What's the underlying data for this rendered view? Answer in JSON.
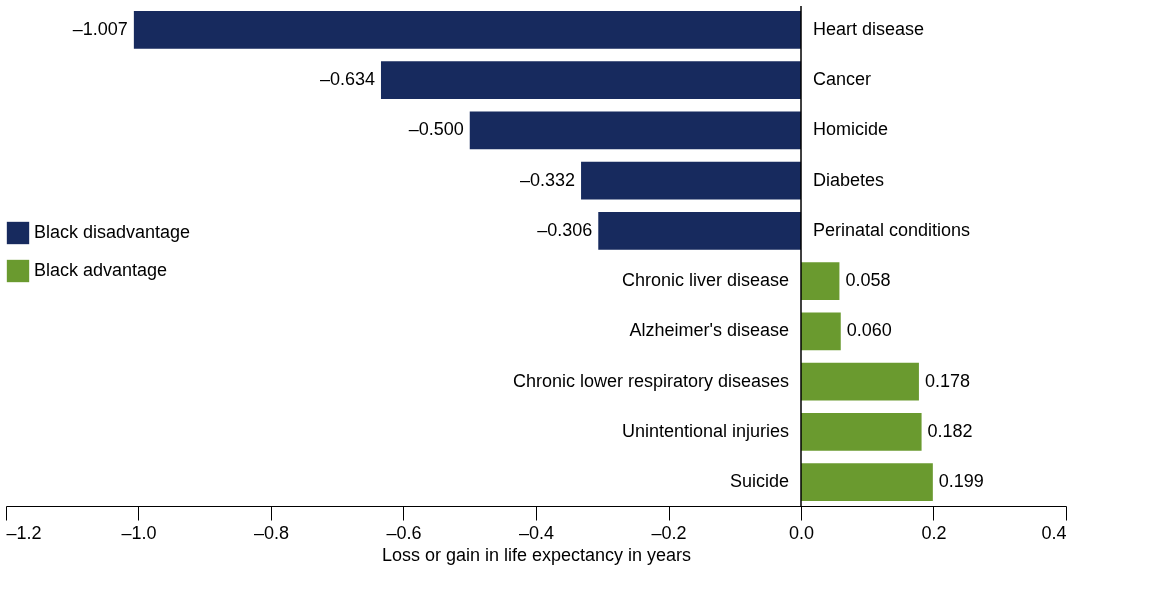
{
  "chart_data": {
    "type": "bar",
    "orientation": "horizontal",
    "categories": [
      "Heart disease",
      "Cancer",
      "Homicide",
      "Diabetes",
      "Perinatal conditions",
      "Chronic liver disease",
      "Alzheimer's disease",
      "Chronic lower respiratory diseases",
      "Unintentional injuries",
      "Suicide"
    ],
    "series": [
      {
        "name": "Black disadvantage",
        "color": "#172a5e",
        "values": [
          -1.007,
          -0.634,
          -0.5,
          -0.332,
          -0.306,
          null,
          null,
          null,
          null,
          null
        ],
        "value_labels": [
          "–1.007",
          "–0.634",
          "–0.500",
          "–0.332",
          "–0.306",
          null,
          null,
          null,
          null,
          null
        ]
      },
      {
        "name": "Black advantage",
        "color": "#6a9a2f",
        "values": [
          null,
          null,
          null,
          null,
          null,
          0.058,
          0.06,
          0.178,
          0.182,
          0.199
        ],
        "value_labels": [
          null,
          null,
          null,
          null,
          null,
          "0.058",
          "0.060",
          "0.178",
          "0.182",
          "0.199"
        ]
      }
    ],
    "xlabel": "Loss or gain in life expectancy in years",
    "xlim": [
      -1.2,
      0.4
    ],
    "xticks": [
      {
        "value": -1.2,
        "label": "–1.2"
      },
      {
        "value": -1.0,
        "label": "–1.0"
      },
      {
        "value": -0.8,
        "label": "–0.8"
      },
      {
        "value": -0.6,
        "label": "–0.6"
      },
      {
        "value": -0.4,
        "label": "–0.4"
      },
      {
        "value": -0.2,
        "label": "–0.2"
      },
      {
        "value": 0,
        "label": "0.0"
      },
      {
        "value": 0.2,
        "label": "0.2"
      },
      {
        "value": 0.4,
        "label": "0.4"
      }
    ],
    "legend": "left",
    "grid": false
  }
}
